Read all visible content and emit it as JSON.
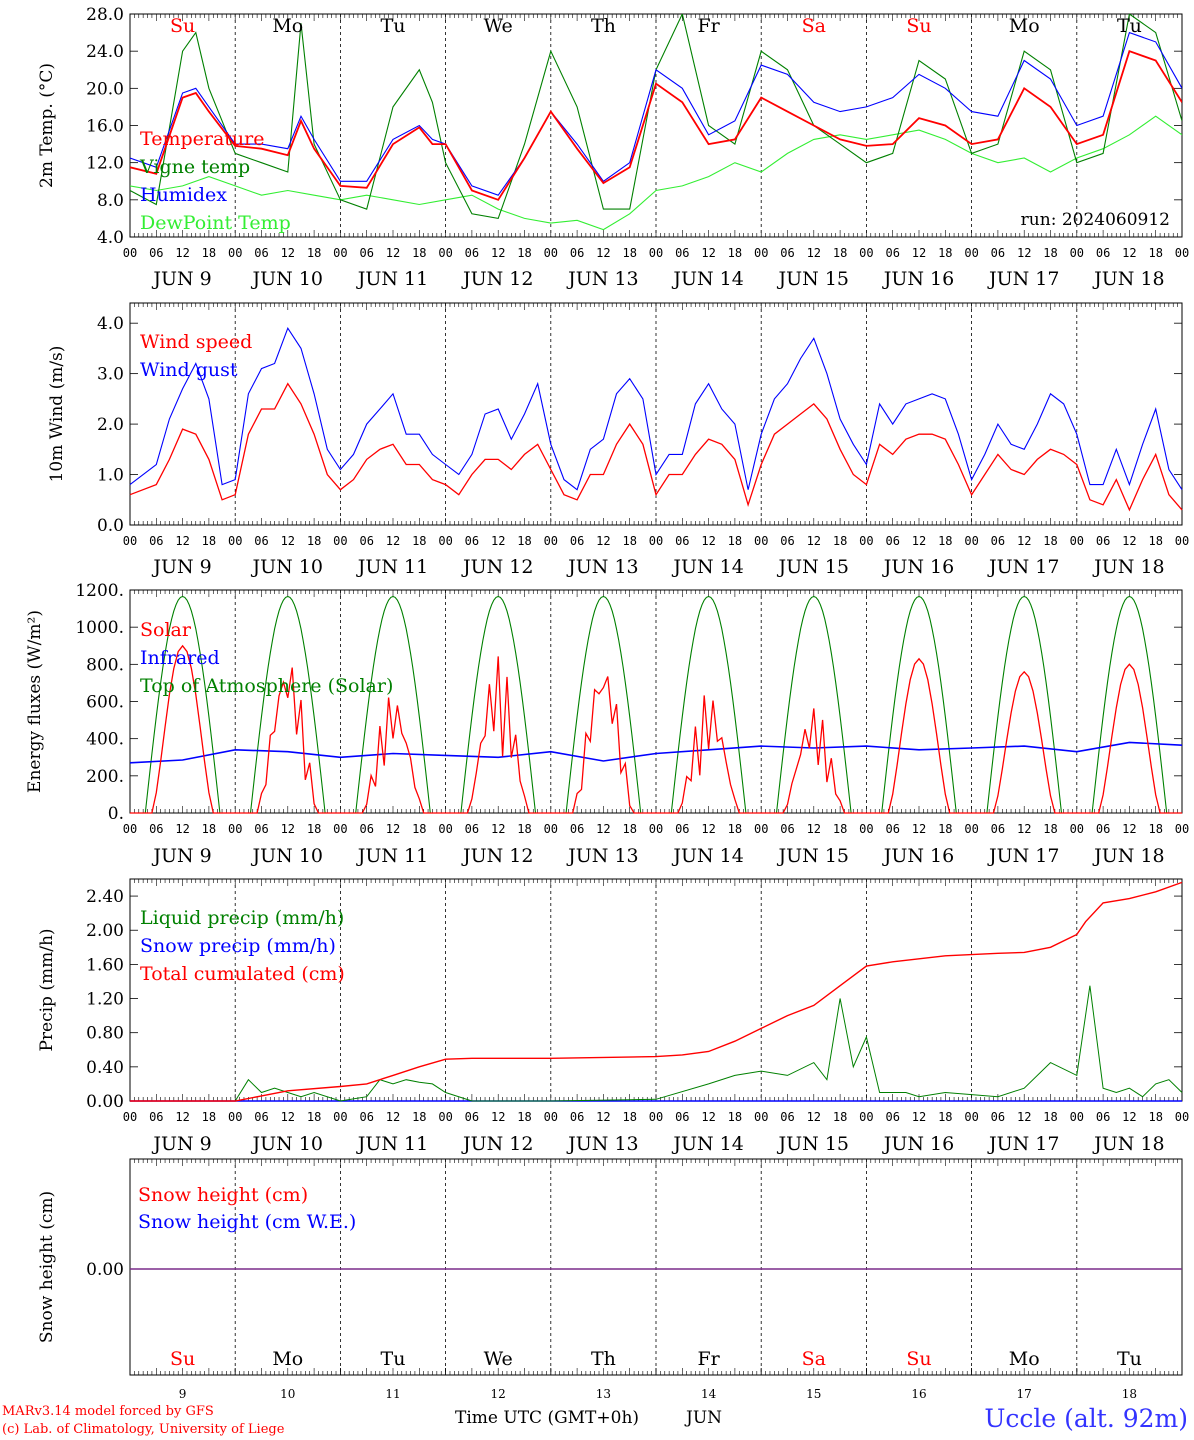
{
  "figure": {
    "location": "Uccle (alt. 92m)",
    "credit_line1": "MARv3.14 model forced by GFS",
    "credit_line2": "(c) Lab. of Climatology, University of Liege",
    "time_axis_label": "Time UTC (GMT+0h)",
    "month_label": "JUN",
    "run_label": "run: 2024060912",
    "hour_ticks": [
      "00",
      "06",
      "12",
      "18"
    ],
    "day_labels": [
      "JUN  9",
      "JUN 10",
      "JUN 11",
      "JUN 12",
      "JUN 13",
      "JUN 14",
      "JUN 15",
      "JUN 16",
      "JUN 17",
      "JUN 18"
    ],
    "weekdays": [
      "Su",
      "Mo",
      "Tu",
      "We",
      "Th",
      "Fr",
      "Sa",
      "Su",
      "Mo",
      "Tu"
    ],
    "day_numbers": [
      "9",
      "10",
      "11",
      "12",
      "13",
      "14",
      "15",
      "16",
      "17",
      "18"
    ],
    "weekend_color": "#ff0000",
    "weekday_color": "#000000"
  },
  "chart_data": [
    {
      "type": "line",
      "ylabel": "2m Temp. (°C)",
      "ylim": [
        4.0,
        28.0
      ],
      "yticks": [
        "4.0",
        "8.0",
        "12.0",
        "16.0",
        "20.0",
        "24.0",
        "28.0"
      ],
      "x_unit": "hours since JUN 9 00 UTC",
      "grid": false,
      "legend": "left",
      "series": [
        {
          "name": "Temperature",
          "color": "#ff0000",
          "x": [
            0,
            6,
            12,
            15,
            18,
            24,
            30,
            36,
            39,
            42,
            48,
            54,
            60,
            66,
            69,
            72,
            78,
            84,
            90,
            96,
            102,
            108,
            114,
            120,
            126,
            132,
            138,
            144,
            150,
            156,
            162,
            168,
            174,
            180,
            186,
            192,
            198,
            204,
            210,
            216,
            222,
            228,
            234,
            240
          ],
          "values": [
            11.5,
            10.8,
            19.0,
            19.5,
            17.5,
            13.8,
            13.5,
            12.8,
            16.5,
            13.5,
            9.5,
            9.3,
            14.0,
            15.8,
            14.0,
            14.0,
            9.0,
            8.0,
            12.5,
            17.5,
            13.5,
            9.8,
            11.5,
            20.5,
            18.5,
            14.0,
            14.5,
            19.0,
            17.5,
            16.0,
            14.5,
            13.8,
            14.0,
            16.8,
            16.0,
            14.0,
            14.5,
            20.0,
            18.0,
            14.0,
            15.0,
            24.0,
            23.0,
            18.5
          ]
        },
        {
          "name": "Vigne temp",
          "color": "#008000",
          "x": [
            0,
            6,
            12,
            15,
            18,
            24,
            30,
            36,
            39,
            42,
            48,
            54,
            60,
            66,
            69,
            72,
            78,
            84,
            90,
            96,
            102,
            108,
            114,
            120,
            126,
            132,
            138,
            144,
            150,
            156,
            162,
            168,
            174,
            180,
            186,
            192,
            198,
            204,
            210,
            216,
            222,
            228,
            234,
            240
          ],
          "values": [
            9.0,
            7.5,
            24.0,
            26.0,
            20.0,
            13.0,
            12.0,
            11.0,
            27.0,
            14.0,
            8.0,
            7.0,
            18.0,
            22.0,
            18.5,
            12.0,
            6.5,
            6.0,
            14.0,
            24.0,
            18.0,
            7.0,
            7.0,
            22.0,
            28.0,
            16.0,
            14.0,
            24.0,
            22.0,
            16.0,
            14.0,
            12.0,
            13.0,
            23.0,
            21.0,
            13.0,
            14.0,
            24.0,
            22.0,
            12.0,
            13.0,
            28.0,
            26.0,
            16.5
          ]
        },
        {
          "name": "Humidex",
          "color": "#0000ff",
          "x": [
            0,
            6,
            12,
            15,
            18,
            24,
            30,
            36,
            39,
            42,
            48,
            54,
            60,
            66,
            69,
            72,
            78,
            84,
            90,
            96,
            102,
            108,
            114,
            120,
            126,
            132,
            138,
            144,
            150,
            156,
            162,
            168,
            174,
            180,
            186,
            192,
            198,
            204,
            210,
            216,
            222,
            228,
            234,
            240
          ],
          "values": [
            12.5,
            11.5,
            19.5,
            20.0,
            18.0,
            14.0,
            14.0,
            13.5,
            17.0,
            14.5,
            10.0,
            10.0,
            14.5,
            16.0,
            14.5,
            14.0,
            9.5,
            8.5,
            12.5,
            17.5,
            14.0,
            10.0,
            12.0,
            22.0,
            20.0,
            15.0,
            16.5,
            22.5,
            21.5,
            18.5,
            17.5,
            18.0,
            19.0,
            21.5,
            20.0,
            17.5,
            17.0,
            23.0,
            21.0,
            16.0,
            17.0,
            26.0,
            25.0,
            20.0
          ]
        },
        {
          "name": "DewPoint Temp",
          "color": "#33ee33",
          "x": [
            0,
            6,
            12,
            18,
            24,
            30,
            36,
            42,
            48,
            54,
            60,
            66,
            72,
            78,
            84,
            90,
            96,
            102,
            108,
            114,
            120,
            126,
            132,
            138,
            144,
            150,
            156,
            162,
            168,
            174,
            180,
            186,
            192,
            198,
            204,
            210,
            216,
            222,
            228,
            234,
            240
          ],
          "values": [
            9.5,
            9.0,
            9.5,
            10.5,
            9.5,
            8.5,
            9.0,
            8.5,
            8.0,
            8.5,
            8.0,
            7.5,
            8.0,
            8.5,
            7.0,
            6.0,
            5.5,
            5.8,
            4.8,
            6.5,
            9.0,
            9.5,
            10.5,
            12.0,
            11.0,
            13.0,
            14.5,
            15.0,
            14.5,
            15.0,
            15.5,
            14.5,
            13.0,
            12.0,
            12.5,
            11.0,
            12.5,
            13.5,
            15.0,
            17.0,
            15.0
          ]
        }
      ]
    },
    {
      "type": "line",
      "ylabel": "10m Wind (m/s)",
      "ylim": [
        0.0,
        4.4
      ],
      "yticks": [
        "0.0",
        "1.0",
        "2.0",
        "3.0",
        "4.0"
      ],
      "x_unit": "hours since JUN 9 00 UTC",
      "legend": "left",
      "series": [
        {
          "name": "Wind speed",
          "color": "#ff0000",
          "x": [
            0,
            6,
            9,
            12,
            15,
            18,
            21,
            24,
            27,
            30,
            33,
            36,
            39,
            42,
            45,
            48,
            51,
            54,
            57,
            60,
            63,
            66,
            69,
            72,
            75,
            78,
            81,
            84,
            87,
            90,
            93,
            96,
            99,
            102,
            105,
            108,
            111,
            114,
            117,
            120,
            123,
            126,
            129,
            132,
            135,
            138,
            141,
            144,
            147,
            150,
            153,
            156,
            159,
            162,
            165,
            168,
            171,
            174,
            177,
            180,
            183,
            186,
            189,
            192,
            195,
            198,
            201,
            204,
            207,
            210,
            213,
            216,
            219,
            222,
            225,
            228,
            231,
            234,
            237,
            240
          ],
          "values": [
            0.6,
            0.8,
            1.3,
            1.9,
            1.8,
            1.3,
            0.5,
            0.6,
            1.8,
            2.3,
            2.3,
            2.8,
            2.4,
            1.8,
            1.0,
            0.7,
            0.9,
            1.3,
            1.5,
            1.6,
            1.2,
            1.2,
            0.9,
            0.8,
            0.6,
            1.0,
            1.3,
            1.3,
            1.1,
            1.4,
            1.6,
            1.1,
            0.6,
            0.5,
            1.0,
            1.0,
            1.6,
            2.0,
            1.6,
            0.6,
            1.0,
            1.0,
            1.4,
            1.7,
            1.6,
            1.3,
            0.4,
            1.2,
            1.8,
            2.0,
            2.2,
            2.4,
            2.1,
            1.5,
            1.0,
            0.8,
            1.6,
            1.4,
            1.7,
            1.8,
            1.8,
            1.7,
            1.2,
            0.6,
            1.0,
            1.4,
            1.1,
            1.0,
            1.3,
            1.5,
            1.4,
            1.2,
            0.5,
            0.4,
            0.9,
            0.3,
            0.9,
            1.4,
            0.6,
            0.3
          ]
        },
        {
          "name": "Wind gust",
          "color": "#0000ff",
          "x": [
            0,
            6,
            9,
            12,
            15,
            18,
            21,
            24,
            27,
            30,
            33,
            36,
            39,
            42,
            45,
            48,
            51,
            54,
            57,
            60,
            63,
            66,
            69,
            72,
            75,
            78,
            81,
            84,
            87,
            90,
            93,
            96,
            99,
            102,
            105,
            108,
            111,
            114,
            117,
            120,
            123,
            126,
            129,
            132,
            135,
            138,
            141,
            144,
            147,
            150,
            153,
            156,
            159,
            162,
            165,
            168,
            171,
            174,
            177,
            180,
            183,
            186,
            189,
            192,
            195,
            198,
            201,
            204,
            207,
            210,
            213,
            216,
            219,
            222,
            225,
            228,
            231,
            234,
            237,
            240
          ],
          "values": [
            0.8,
            1.2,
            2.1,
            2.7,
            3.2,
            2.5,
            0.8,
            0.9,
            2.6,
            3.1,
            3.2,
            3.9,
            3.5,
            2.6,
            1.5,
            1.1,
            1.4,
            2.0,
            2.3,
            2.6,
            1.8,
            1.8,
            1.4,
            1.2,
            1.0,
            1.4,
            2.2,
            2.3,
            1.7,
            2.2,
            2.8,
            1.6,
            0.9,
            0.7,
            1.5,
            1.7,
            2.6,
            2.9,
            2.5,
            1.0,
            1.4,
            1.4,
            2.4,
            2.8,
            2.3,
            2.0,
            0.7,
            1.8,
            2.5,
            2.8,
            3.3,
            3.7,
            3.0,
            2.1,
            1.6,
            1.2,
            2.4,
            2.0,
            2.4,
            2.5,
            2.6,
            2.5,
            1.8,
            0.9,
            1.4,
            2.0,
            1.6,
            1.5,
            2.0,
            2.6,
            2.4,
            1.8,
            0.8,
            0.8,
            1.5,
            0.8,
            1.6,
            2.3,
            1.1,
            0.7
          ]
        }
      ]
    },
    {
      "type": "line",
      "ylabel": "Energy fluxes (W/m²)",
      "ylim": [
        0,
        1200
      ],
      "yticks": [
        "0.",
        "200.",
        "400.",
        "600.",
        "800.",
        "1000.",
        "1200."
      ],
      "x_unit": "hours since JUN 9 00 UTC",
      "legend": "left",
      "toa_peak": 1165,
      "toa_daylight_hours": [
        3.5,
        20.5
      ],
      "solar_daily_peak": [
        900,
        870,
        660,
        850,
        860,
        660,
        580,
        830,
        760,
        800
      ],
      "series": [
        {
          "name": "Solar",
          "color": "#ff0000"
        },
        {
          "name": "Infrared",
          "color": "#0000ff",
          "x": [
            0,
            12,
            24,
            36,
            48,
            60,
            72,
            84,
            96,
            108,
            120,
            132,
            144,
            156,
            168,
            180,
            192,
            204,
            216,
            228,
            240
          ],
          "values": [
            270,
            285,
            340,
            330,
            300,
            320,
            310,
            300,
            330,
            280,
            320,
            340,
            360,
            350,
            360,
            340,
            350,
            360,
            330,
            380,
            365
          ]
        },
        {
          "name": "Top of Atmosphere (Solar)",
          "color": "#008000"
        }
      ]
    },
    {
      "type": "line",
      "ylabel": "Precip (mm/h)",
      "ylim": [
        0.0,
        2.6
      ],
      "yticks": [
        "0.00",
        "0.40",
        "0.80",
        "1.20",
        "1.60",
        "2.00",
        "2.40"
      ],
      "x_unit": "hours since JUN 9 00 UTC",
      "legend": "left",
      "series": [
        {
          "name": "Liquid precip (mm/h)",
          "color": "#008000",
          "x": [
            0,
            24,
            27,
            30,
            33,
            36,
            39,
            42,
            48,
            54,
            57,
            60,
            63,
            66,
            69,
            72,
            78,
            96,
            120,
            132,
            138,
            144,
            150,
            156,
            159,
            162,
            165,
            168,
            171,
            174,
            177,
            180,
            186,
            198,
            204,
            210,
            216,
            219,
            222,
            225,
            228,
            231,
            234,
            237,
            240
          ],
          "values": [
            0,
            0,
            0.25,
            0.1,
            0.15,
            0.1,
            0.05,
            0.1,
            0,
            0.05,
            0.25,
            0.2,
            0.25,
            0.22,
            0.2,
            0.1,
            0,
            0,
            0.02,
            0.2,
            0.3,
            0.35,
            0.3,
            0.45,
            0.25,
            1.2,
            0.4,
            0.75,
            0.1,
            0.1,
            0.1,
            0.05,
            0.1,
            0.05,
            0.15,
            0.45,
            0.3,
            1.35,
            0.15,
            0.1,
            0.15,
            0.05,
            0.2,
            0.25,
            0.1
          ]
        },
        {
          "name": "Snow precip (mm/h)",
          "color": "#0000ff",
          "x": [
            0,
            240
          ],
          "values": [
            0,
            0
          ]
        },
        {
          "name": "Total cumulated (cm)",
          "color": "#ff0000",
          "x": [
            0,
            24,
            30,
            36,
            48,
            54,
            60,
            66,
            72,
            78,
            96,
            120,
            126,
            132,
            138,
            144,
            150,
            156,
            162,
            168,
            174,
            186,
            198,
            204,
            210,
            216,
            218,
            222,
            228,
            234,
            240
          ],
          "values": [
            0,
            0,
            0.06,
            0.12,
            0.17,
            0.2,
            0.3,
            0.4,
            0.49,
            0.5,
            0.5,
            0.52,
            0.54,
            0.58,
            0.7,
            0.85,
            1.0,
            1.12,
            1.35,
            1.58,
            1.63,
            1.7,
            1.73,
            1.74,
            1.8,
            1.95,
            2.1,
            2.32,
            2.37,
            2.45,
            2.56
          ]
        }
      ]
    },
    {
      "type": "line",
      "ylabel": "Snow height (cm)",
      "yticks": [
        "0.00"
      ],
      "x_unit": "hours since JUN 9 00 UTC",
      "legend": "left",
      "series": [
        {
          "name": "Snow height (cm)",
          "color": "#ff0000",
          "x": [
            0,
            240
          ],
          "values": [
            0,
            0
          ]
        },
        {
          "name": "Snow height (cm W.E.)",
          "color": "#0000ff",
          "x": [
            0,
            240
          ],
          "values": [
            0,
            0
          ]
        }
      ],
      "line_color": "#7a2b8a"
    }
  ]
}
